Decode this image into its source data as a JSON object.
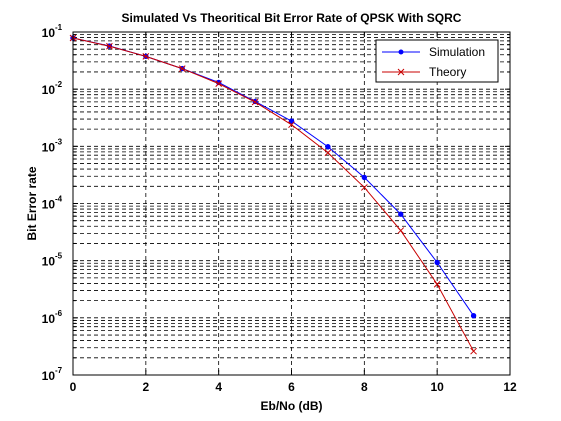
{
  "chart_data": {
    "type": "line",
    "title": "Simulated Vs Theoritical Bit Error Rate of QPSK With SQRC",
    "xlabel": "Eb/No (dB)",
    "ylabel": "Bit Error rate",
    "xlim": [
      0,
      12
    ],
    "ylim": [
      1e-07,
      0.1
    ],
    "yscale": "log",
    "grid": "on",
    "legend_position": "top-right",
    "x_ticks": [
      "0",
      "2",
      "4",
      "6",
      "8",
      "10",
      "12"
    ],
    "y_ticks": [
      {
        "base": "10",
        "exp": "-1",
        "value": 0.1
      },
      {
        "base": "10",
        "exp": "-2",
        "value": 0.01
      },
      {
        "base": "10",
        "exp": "-3",
        "value": 0.001
      },
      {
        "base": "10",
        "exp": "-4",
        "value": 0.0001
      },
      {
        "base": "10",
        "exp": "-5",
        "value": 1e-05
      },
      {
        "base": "10",
        "exp": "-6",
        "value": 1e-06
      },
      {
        "base": "10",
        "exp": "-7",
        "value": 1e-07
      }
    ],
    "x": [
      0,
      1,
      2,
      3,
      4,
      5,
      6,
      7,
      8,
      9,
      10,
      11
    ],
    "series": [
      {
        "name": "Simulation",
        "color": "#0000ff",
        "marker": "dot",
        "values": [
          0.0786,
          0.0568,
          0.0375,
          0.0229,
          0.0131,
          0.0061,
          0.00277,
          0.000983,
          0.000286,
          6.49e-05,
          9.29e-06,
          1.09e-06
        ]
      },
      {
        "name": "Theory",
        "color": "#c80000",
        "marker": "x",
        "values": [
          0.0786,
          0.0563,
          0.0375,
          0.0229,
          0.0125,
          0.00595,
          0.00239,
          0.000773,
          0.000191,
          3.36e-05,
          3.87e-06,
          2.61e-07
        ]
      }
    ]
  }
}
